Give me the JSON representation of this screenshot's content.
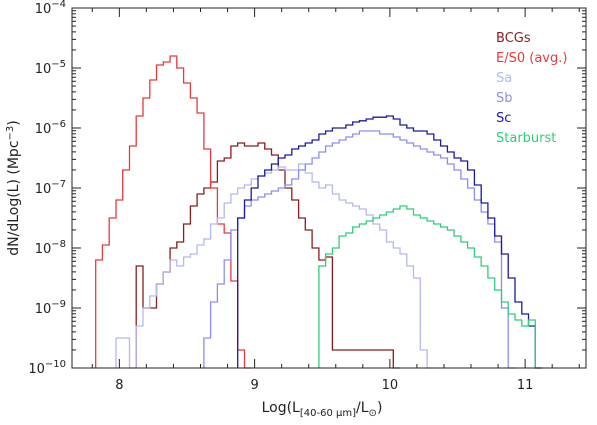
{
  "chart_data": {
    "type": "line",
    "step": true,
    "xlabel": "Log(L[40-60 μm]/L⊙)",
    "xlabel_parts": {
      "base": "Log(L",
      "sub": "[40-60 μm]",
      "mid": "/L",
      "sun": "⊙",
      "end": ")"
    },
    "ylabel": "dN/dLog(L) (Mpc⁻³)",
    "ylabel_parts": {
      "base": "dN/dLog(L) (Mpc",
      "sup": "−3",
      "end": ")"
    },
    "xlim": [
      7.65,
      11.45
    ],
    "ylim_log10": [
      -10,
      -4
    ],
    "y_scale": "log",
    "x_ticks": [
      {
        "value": 8,
        "label": "8"
      },
      {
        "value": 9,
        "label": "9"
      },
      {
        "value": 10,
        "label": "10"
      },
      {
        "value": 11,
        "label": "11"
      }
    ],
    "y_ticks": [
      {
        "exp": -4,
        "label": "10",
        "exp_label": "−4"
      },
      {
        "exp": -5,
        "label": "10",
        "exp_label": "−5"
      },
      {
        "exp": -6,
        "label": "10",
        "exp_label": "−6"
      },
      {
        "exp": -7,
        "label": "10",
        "exp_label": "−7"
      },
      {
        "exp": -8,
        "label": "10",
        "exp_label": "−8"
      },
      {
        "exp": -9,
        "label": "10",
        "exp_label": "−9"
      },
      {
        "exp": -10,
        "label": "10",
        "exp_label": "−10"
      }
    ],
    "legend_position": "top-right",
    "series": [
      {
        "name": "BCGs",
        "color": "#8b1c1c",
        "x": [
          8.15,
          8.2,
          8.25,
          8.3,
          8.35,
          8.4,
          8.45,
          8.5,
          8.55,
          8.6,
          8.65,
          8.7,
          8.75,
          8.8,
          8.85,
          8.9,
          8.95,
          9.0,
          9.05,
          9.1,
          9.15,
          9.2,
          9.25,
          9.3,
          9.35,
          9.4,
          9.45,
          9.5,
          9.55,
          9.6,
          9.65,
          9.7,
          9.75,
          9.8,
          9.85,
          9.9,
          9.95,
          10.0,
          10.05
        ],
        "log10y": [
          -8.3,
          -9.0,
          -9.0,
          -8.6,
          -8.4,
          -8.0,
          -7.9,
          -7.6,
          -7.3,
          -7.1,
          -7.0,
          -6.9,
          -6.55,
          -6.5,
          -6.3,
          -6.25,
          -6.3,
          -6.3,
          -6.25,
          -6.35,
          -6.45,
          -6.7,
          -7.0,
          -7.2,
          -7.5,
          -7.7,
          -8.0,
          -8.2,
          -8.15,
          -9.7,
          -9.7,
          -9.7,
          -9.7,
          -9.7,
          -9.7,
          -9.7,
          -9.7,
          -9.7,
          -10.0
        ]
      },
      {
        "name": "E/S0 (avg.)",
        "color": "#e8393c",
        "x": [
          7.85,
          7.9,
          7.95,
          8.0,
          8.05,
          8.1,
          8.15,
          8.2,
          8.25,
          8.3,
          8.35,
          8.4,
          8.45,
          8.5,
          8.55,
          8.6,
          8.65,
          8.7,
          8.75,
          8.8,
          8.85,
          8.9,
          8.95
        ],
        "log10y": [
          -8.2,
          -7.95,
          -7.5,
          -7.2,
          -6.7,
          -6.3,
          -5.8,
          -5.5,
          -5.2,
          -4.95,
          -4.9,
          -4.8,
          -5.0,
          -5.25,
          -5.5,
          -5.75,
          -6.35,
          -7.0,
          -7.6,
          -7.75,
          -8.55,
          -9.7,
          -10.0
        ]
      },
      {
        "name": "Sa",
        "color": "#b3b8f0",
        "x": [
          8.0,
          8.05,
          8.1,
          8.15,
          8.2,
          8.25,
          8.3,
          8.35,
          8.4,
          8.45,
          8.5,
          8.55,
          8.6,
          8.65,
          8.7,
          8.75,
          8.8,
          8.85,
          8.9,
          8.95,
          9.0,
          9.05,
          9.1,
          9.15,
          9.2,
          9.25,
          9.3,
          9.35,
          9.4,
          9.45,
          9.5,
          9.55,
          9.6,
          9.65,
          9.7,
          9.75,
          9.8,
          9.85,
          9.9,
          9.95,
          10.0,
          10.05,
          10.1,
          10.15,
          10.2,
          10.25,
          10.3
        ],
        "log10y": [
          -9.5,
          -9.5,
          -10.0,
          -9.3,
          -9.0,
          -8.8,
          -8.6,
          -8.4,
          -8.2,
          -8.3,
          -8.15,
          -8.1,
          -7.95,
          -7.85,
          -7.6,
          -7.5,
          -7.25,
          -7.1,
          -7.0,
          -6.95,
          -6.85,
          -6.8,
          -6.75,
          -6.7,
          -6.65,
          -6.7,
          -6.7,
          -6.6,
          -6.75,
          -6.9,
          -7.0,
          -6.95,
          -7.1,
          -7.2,
          -7.25,
          -7.3,
          -7.35,
          -7.45,
          -7.6,
          -7.7,
          -7.9,
          -8.0,
          -8.1,
          -8.3,
          -8.5,
          -9.7,
          -10.0
        ]
      },
      {
        "name": "Sb",
        "color": "#8a8ef2",
        "x": [
          8.65,
          8.7,
          8.75,
          8.8,
          8.85,
          8.9,
          8.95,
          9.0,
          9.05,
          9.1,
          9.15,
          9.2,
          9.25,
          9.3,
          9.35,
          9.4,
          9.45,
          9.5,
          9.55,
          9.6,
          9.65,
          9.7,
          9.75,
          9.8,
          9.85,
          9.9,
          9.95,
          10.0,
          10.05,
          10.1,
          10.15,
          10.2,
          10.25,
          10.3,
          10.35,
          10.4,
          10.45,
          10.5,
          10.55,
          10.6,
          10.65,
          10.7,
          10.75,
          10.8,
          10.85,
          10.9
        ],
        "log10y": [
          -9.5,
          -8.9,
          -8.6,
          -8.2,
          -7.7,
          -7.5,
          -7.3,
          -7.2,
          -7.15,
          -7.1,
          -7.05,
          -7.0,
          -6.95,
          -6.85,
          -6.7,
          -6.6,
          -6.5,
          -6.4,
          -6.3,
          -6.25,
          -6.2,
          -6.15,
          -6.1,
          -6.05,
          -6.05,
          -6.05,
          -6.1,
          -6.1,
          -6.15,
          -6.2,
          -6.25,
          -6.3,
          -6.35,
          -6.4,
          -6.45,
          -6.5,
          -6.6,
          -6.7,
          -6.85,
          -7.0,
          -7.2,
          -7.4,
          -7.6,
          -7.9,
          -9.0,
          -10.0
        ]
      },
      {
        "name": "Sc",
        "color": "#1a1aaa",
        "x": [
          8.9,
          8.95,
          9.0,
          9.05,
          9.1,
          9.15,
          9.2,
          9.25,
          9.3,
          9.35,
          9.4,
          9.45,
          9.5,
          9.55,
          9.6,
          9.65,
          9.7,
          9.75,
          9.8,
          9.85,
          9.9,
          9.95,
          10.0,
          10.05,
          10.1,
          10.15,
          10.2,
          10.25,
          10.3,
          10.35,
          10.4,
          10.45,
          10.5,
          10.55,
          10.6,
          10.65,
          10.7,
          10.75,
          10.8,
          10.85,
          10.9,
          10.95,
          11.0,
          11.05,
          11.1
        ],
        "log10y": [
          -7.5,
          -7.2,
          -7.0,
          -6.8,
          -6.7,
          -6.6,
          -6.5,
          -6.45,
          -6.35,
          -6.3,
          -6.25,
          -6.2,
          -6.1,
          -6.05,
          -6.0,
          -6.0,
          -5.95,
          -5.9,
          -5.88,
          -5.85,
          -5.82,
          -5.82,
          -5.8,
          -5.85,
          -5.95,
          -6.0,
          -6.05,
          -6.05,
          -6.1,
          -6.2,
          -6.3,
          -6.4,
          -6.5,
          -6.55,
          -6.7,
          -6.95,
          -7.25,
          -7.5,
          -7.8,
          -8.1,
          -8.5,
          -8.9,
          -9.1,
          -9.3,
          -10.0
        ]
      },
      {
        "name": "Starburst",
        "color": "#2fce7a",
        "x": [
          9.5,
          9.55,
          9.6,
          9.65,
          9.7,
          9.75,
          9.8,
          9.85,
          9.9,
          9.95,
          10.0,
          10.05,
          10.1,
          10.15,
          10.2,
          10.25,
          10.3,
          10.35,
          10.4,
          10.45,
          10.5,
          10.55,
          10.6,
          10.65,
          10.7,
          10.75,
          10.8,
          10.85,
          10.9,
          10.95,
          11.0,
          11.05,
          11.1
        ],
        "log10y": [
          -8.3,
          -8.1,
          -8.0,
          -7.8,
          -7.75,
          -7.65,
          -7.6,
          -7.55,
          -7.5,
          -7.45,
          -7.4,
          -7.35,
          -7.3,
          -7.35,
          -7.45,
          -7.5,
          -7.55,
          -7.6,
          -7.65,
          -7.7,
          -7.8,
          -7.9,
          -8.0,
          -8.15,
          -8.3,
          -8.5,
          -8.7,
          -8.9,
          -9.1,
          -9.2,
          -9.3,
          -9.2,
          -10.0
        ]
      }
    ]
  }
}
